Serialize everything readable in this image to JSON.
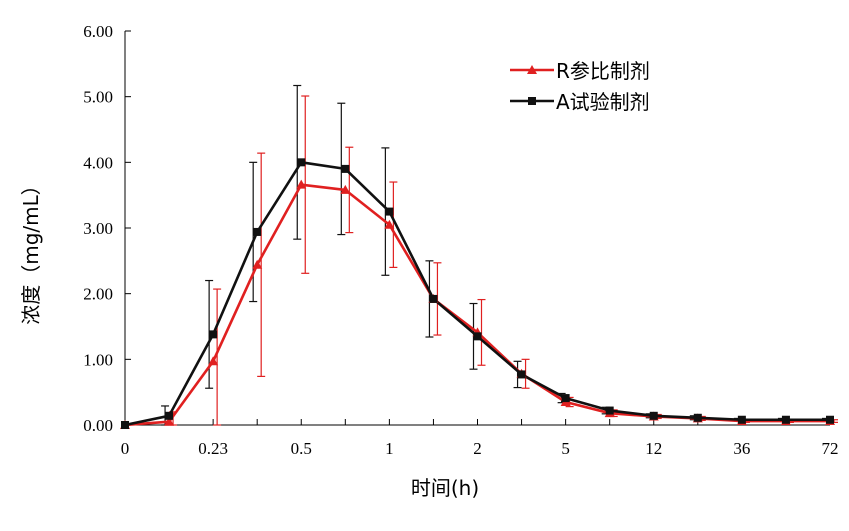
{
  "chart_data": {
    "type": "line",
    "title": "",
    "xlabel": "时间(h)",
    "ylabel": "浓度（mg/mL）",
    "ylim": [
      0,
      6
    ],
    "y_ticks": [
      "0.00",
      "1.00",
      "2.00",
      "3.00",
      "4.00",
      "5.00",
      "6.00"
    ],
    "x_tick_labels": [
      "0",
      "0.23",
      "0.5",
      "1",
      "2",
      "5",
      "12",
      "36",
      "72"
    ],
    "x": [
      "0",
      "",
      "0.23",
      "",
      "0.5",
      "",
      "1",
      "",
      "2",
      "",
      "5",
      "",
      "12",
      "",
      "36",
      "",
      "72"
    ],
    "grid": false,
    "legend_position": "top-right",
    "series": [
      {
        "name": "R参比制剂",
        "color": "#e02020",
        "marker": "triangle",
        "values": [
          0.0,
          0.05,
          0.97,
          2.44,
          3.66,
          3.58,
          3.05,
          1.92,
          1.41,
          0.78,
          0.35,
          0.18,
          0.13,
          0.1,
          0.06,
          0.06,
          0.06
        ],
        "errors": [
          0.0,
          0.15,
          1.1,
          1.7,
          1.35,
          0.65,
          0.65,
          0.55,
          0.5,
          0.22,
          0.07,
          0.05,
          0.03,
          0.03,
          0.02,
          0.02,
          0.02
        ]
      },
      {
        "name": "A试验制剂",
        "color": "#111111",
        "marker": "square",
        "values": [
          0.0,
          0.14,
          1.38,
          2.94,
          4.0,
          3.9,
          3.25,
          1.92,
          1.35,
          0.77,
          0.41,
          0.22,
          0.14,
          0.11,
          0.08,
          0.08,
          0.08
        ],
        "errors": [
          0.0,
          0.15,
          0.82,
          1.06,
          1.17,
          1.0,
          0.97,
          0.58,
          0.5,
          0.2,
          0.07,
          0.05,
          0.03,
          0.03,
          0.02,
          0.02,
          0.02
        ]
      }
    ]
  }
}
